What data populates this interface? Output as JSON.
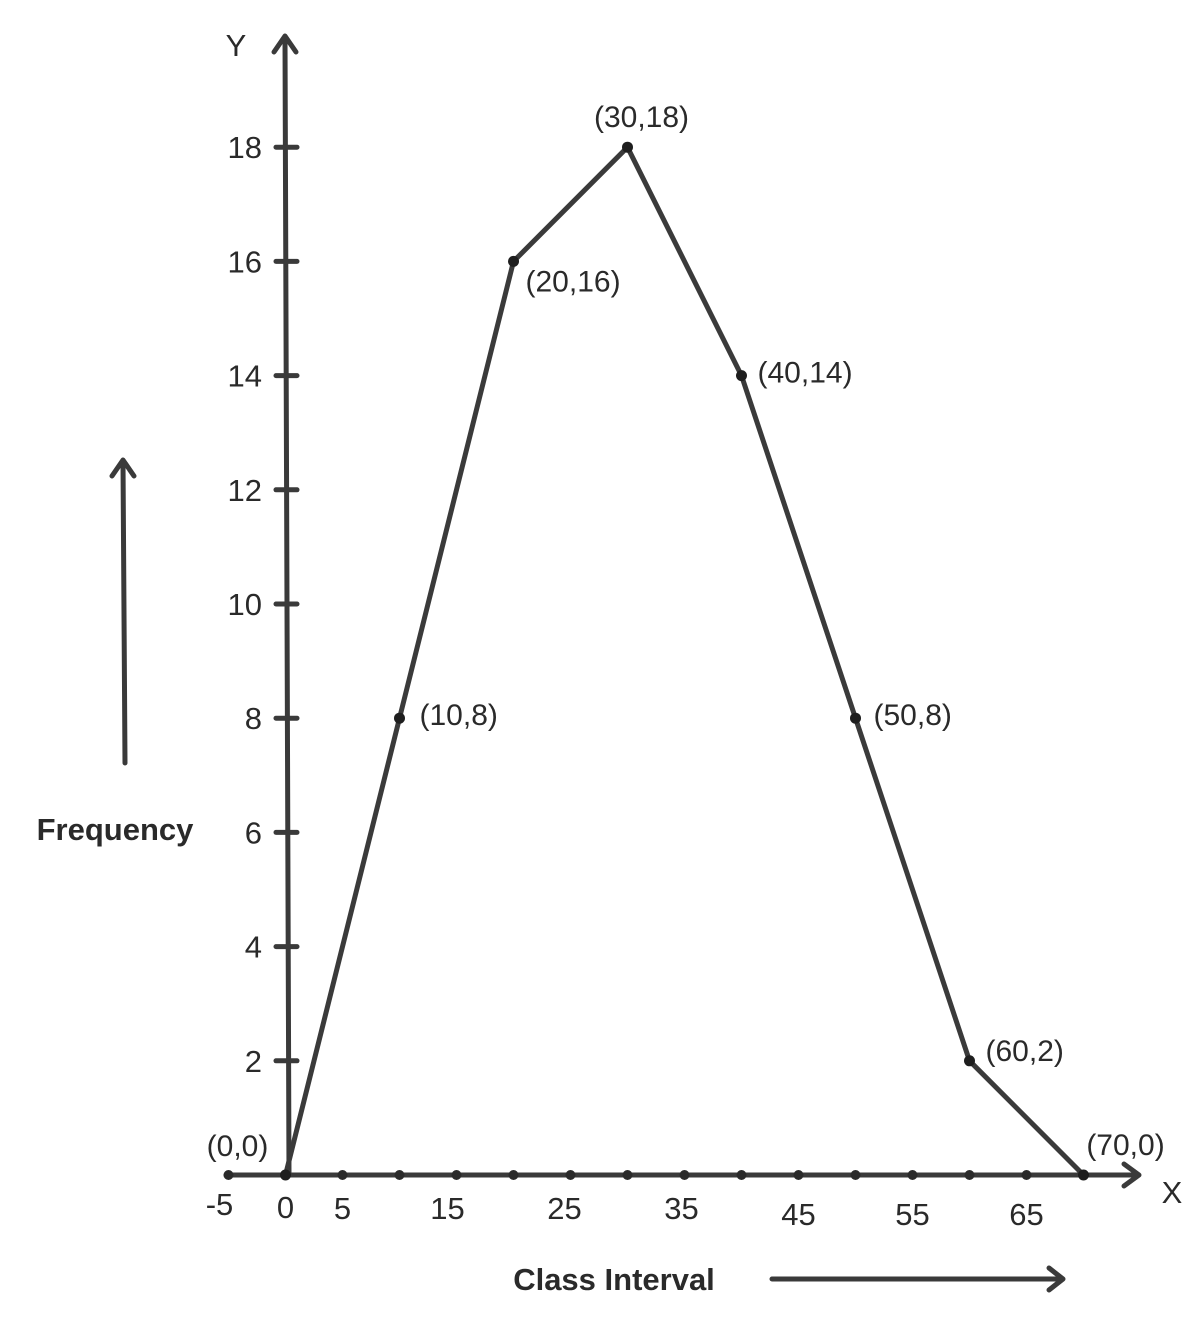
{
  "chart_data": {
    "type": "line",
    "xlabel": "Class Interval",
    "ylabel": "Frequency",
    "x_axis_name": "X",
    "y_axis_name": "Y",
    "xlim": [
      -5,
      70
    ],
    "ylim": [
      0,
      18
    ],
    "x_tick_labels": [
      "-5",
      "0",
      "5",
      "15",
      "25",
      "35",
      "45",
      "55",
      "65"
    ],
    "x_tick_values": [
      -5,
      0,
      5,
      15,
      25,
      35,
      45,
      55,
      65
    ],
    "x_dot_values": [
      -5,
      0,
      5,
      10,
      15,
      20,
      25,
      30,
      35,
      40,
      45,
      50,
      55,
      60,
      65,
      70
    ],
    "y_ticks": [
      2,
      4,
      6,
      8,
      10,
      12,
      14,
      16,
      18
    ],
    "series": [
      {
        "points": [
          {
            "x": 0,
            "y": 0,
            "label": "(0,0)"
          },
          {
            "x": 10,
            "y": 8,
            "label": "(10,8)"
          },
          {
            "x": 20,
            "y": 16,
            "label": "(20,16)"
          },
          {
            "x": 30,
            "y": 18,
            "label": "(30,18)"
          },
          {
            "x": 40,
            "y": 14,
            "label": "(40,14)"
          },
          {
            "x": 50,
            "y": 8,
            "label": "(50,8)"
          },
          {
            "x": 60,
            "y": 2,
            "label": "(60,2)"
          },
          {
            "x": 70,
            "y": 0,
            "label": "(70,0)"
          }
        ]
      }
    ],
    "grid": false,
    "colors": {
      "line": "#3a3a3a",
      "text": "#2a2a2a"
    }
  }
}
